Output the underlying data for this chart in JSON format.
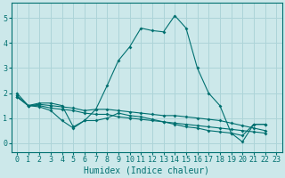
{
  "xlabel": "Humidex (Indice chaleur)",
  "background_color": "#cce8ea",
  "grid_color": "#add4d8",
  "line_color": "#007070",
  "spine_color": "#007070",
  "x_ticks": [
    0,
    1,
    2,
    3,
    4,
    5,
    6,
    7,
    8,
    9,
    10,
    11,
    12,
    13,
    14,
    15,
    16,
    17,
    18,
    19,
    20,
    21,
    22,
    23
  ],
  "y_ticks": [
    0,
    1,
    2,
    3,
    4,
    5
  ],
  "ylim": [
    -0.35,
    5.6
  ],
  "xlim": [
    -0.5,
    23.5
  ],
  "line1_y": [
    2.0,
    1.5,
    1.6,
    1.6,
    1.5,
    0.65,
    0.9,
    1.35,
    2.3,
    3.3,
    3.85,
    4.6,
    4.5,
    4.45,
    5.1,
    4.6,
    3.0,
    2.0,
    1.5,
    0.4,
    0.05,
    0.75,
    0.75,
    null
  ],
  "line2_y": [
    1.9,
    1.5,
    1.55,
    1.5,
    1.45,
    1.4,
    1.3,
    1.35,
    1.35,
    1.3,
    1.25,
    1.2,
    1.15,
    1.1,
    1.1,
    1.05,
    1.0,
    0.95,
    0.9,
    0.8,
    0.7,
    0.6,
    0.5,
    null
  ],
  "line3_y": [
    1.85,
    1.5,
    1.5,
    1.4,
    1.35,
    1.3,
    1.2,
    1.15,
    1.15,
    1.05,
    1.0,
    0.95,
    0.9,
    0.85,
    0.8,
    0.75,
    0.7,
    0.65,
    0.6,
    0.55,
    0.5,
    0.45,
    0.4,
    null
  ],
  "line4_y": [
    1.85,
    1.5,
    1.45,
    1.3,
    0.9,
    0.6,
    0.9,
    0.9,
    1.0,
    1.2,
    1.1,
    1.05,
    0.95,
    0.85,
    0.75,
    0.65,
    0.6,
    0.5,
    0.45,
    0.4,
    0.3,
    0.75,
    0.75,
    null
  ],
  "tick_fontsize": 6,
  "xlabel_fontsize": 7
}
